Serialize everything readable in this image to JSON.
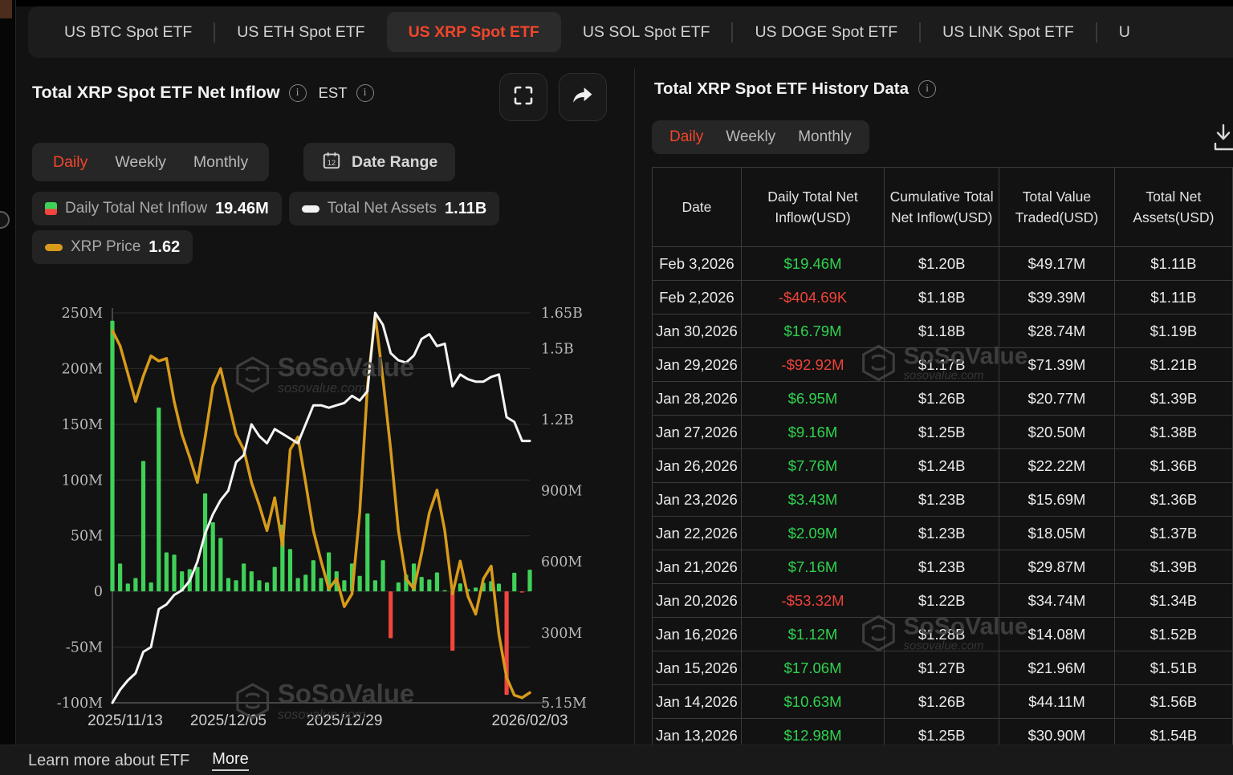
{
  "tabs": {
    "items": [
      {
        "label": "US BTC Spot ETF",
        "active": false
      },
      {
        "label": "US ETH Spot ETF",
        "active": false
      },
      {
        "label": "US XRP Spot ETF",
        "active": true
      },
      {
        "label": "US SOL Spot ETF",
        "active": false
      },
      {
        "label": "US DOGE Spot ETF",
        "active": false
      },
      {
        "label": "US LINK Spot ETF",
        "active": false
      },
      {
        "label": "U",
        "active": false
      }
    ]
  },
  "left_panel": {
    "title": "Total XRP Spot ETF Net Inflow",
    "est_label": "EST",
    "period_tabs": [
      "Daily",
      "Weekly",
      "Monthly"
    ],
    "active_period": "Daily",
    "date_range_label": "Date Range",
    "legend": [
      {
        "label": "Daily Total Net Inflow",
        "value": "19.46M"
      },
      {
        "label": "Total Net Assets",
        "value": "1.11B"
      },
      {
        "label": "XRP Price",
        "value": "1.62"
      }
    ]
  },
  "right_panel": {
    "title": "Total XRP Spot ETF History Data",
    "period_tabs": [
      "Daily",
      "Weekly",
      "Monthly"
    ],
    "active_period": "Daily",
    "table": {
      "columns": [
        "Date",
        "Daily Total Net Inflow(USD)",
        "Cumulative Total Net Inflow(USD)",
        "Total Value Traded(USD)",
        "Total Net Assets(USD)"
      ],
      "rows": [
        [
          "Feb 3,2026",
          "$19.46M",
          "$1.20B",
          "$49.17M",
          "$1.11B"
        ],
        [
          "Feb 2,2026",
          "-$404.69K",
          "$1.18B",
          "$39.39M",
          "$1.11B"
        ],
        [
          "Jan 30,2026",
          "$16.79M",
          "$1.18B",
          "$28.74M",
          "$1.19B"
        ],
        [
          "Jan 29,2026",
          "-$92.92M",
          "$1.17B",
          "$71.39M",
          "$1.21B"
        ],
        [
          "Jan 28,2026",
          "$6.95M",
          "$1.26B",
          "$20.77M",
          "$1.39B"
        ],
        [
          "Jan 27,2026",
          "$9.16M",
          "$1.25B",
          "$20.50M",
          "$1.38B"
        ],
        [
          "Jan 26,2026",
          "$7.76M",
          "$1.24B",
          "$22.22M",
          "$1.36B"
        ],
        [
          "Jan 23,2026",
          "$3.43M",
          "$1.23B",
          "$15.69M",
          "$1.36B"
        ],
        [
          "Jan 22,2026",
          "$2.09M",
          "$1.23B",
          "$18.05M",
          "$1.37B"
        ],
        [
          "Jan 21,2026",
          "$7.16M",
          "$1.23B",
          "$29.87M",
          "$1.39B"
        ],
        [
          "Jan 20,2026",
          "-$53.32M",
          "$1.22B",
          "$34.74M",
          "$1.34B"
        ],
        [
          "Jan 16,2026",
          "$1.12M",
          "$1.28B",
          "$14.08M",
          "$1.52B"
        ],
        [
          "Jan 15,2026",
          "$17.06M",
          "$1.27B",
          "$21.96M",
          "$1.51B"
        ],
        [
          "Jan 14,2026",
          "$10.63M",
          "$1.26B",
          "$44.11M",
          "$1.56B"
        ],
        [
          "Jan 13,2026",
          "$12.98M",
          "$1.25B",
          "$30.90M",
          "$1.54B"
        ]
      ]
    }
  },
  "footer": {
    "text": "Learn more about ETF",
    "link": "More"
  },
  "watermark": {
    "brand": "SoSoValue",
    "domain": "sosovalue.com"
  },
  "colors": {
    "accent_red": "#f1462b",
    "green": "#3fd158",
    "red_bar": "#f2453d",
    "orange_line": "#d79a1b",
    "white_line": "#f5f5f5"
  },
  "chart_data": {
    "type": "line+bar",
    "x": [
      "2025/11/13",
      "2025/11/14",
      "2025/11/17",
      "2025/11/18",
      "2025/11/19",
      "2025/11/20",
      "2025/11/21",
      "2025/11/24",
      "2025/11/25",
      "2025/11/26",
      "2025/11/28",
      "2025/12/01",
      "2025/12/02",
      "2025/12/03",
      "2025/12/04",
      "2025/12/05",
      "2025/12/08",
      "2025/12/09",
      "2025/12/10",
      "2025/12/11",
      "2025/12/12",
      "2025/12/15",
      "2025/12/16",
      "2025/12/17",
      "2025/12/18",
      "2025/12/19",
      "2025/12/22",
      "2025/12/23",
      "2025/12/24",
      "2025/12/26",
      "2025/12/29",
      "2025/12/30",
      "2025/12/31",
      "2026/01/02",
      "2026/01/05",
      "2026/01/06",
      "2026/01/07",
      "2026/01/08",
      "2026/01/09",
      "2026/01/12",
      "2026/01/13",
      "2026/01/14",
      "2026/01/15",
      "2026/01/16",
      "2026/01/20",
      "2026/01/21",
      "2026/01/22",
      "2026/01/23",
      "2026/01/26",
      "2026/01/27",
      "2026/01/28",
      "2026/01/29",
      "2026/01/30",
      "2026/02/02",
      "2026/02/03"
    ],
    "series": [
      {
        "name": "Daily Total Net Inflow",
        "type": "bar",
        "unit": "USD millions",
        "color_pos": "#3fd158",
        "color_neg": "#f2453d",
        "values": [
          243,
          25,
          7,
          12,
          117,
          8,
          165,
          35,
          33,
          18,
          20,
          22,
          88,
          62,
          48,
          12,
          10,
          25,
          18,
          10,
          8,
          22,
          60,
          38,
          12,
          15,
          28,
          12,
          35,
          18,
          10,
          25,
          14,
          70,
          10,
          28,
          -42,
          8,
          15,
          25,
          12.98,
          10.63,
          17.06,
          1.12,
          -53.32,
          7.16,
          2.09,
          3.43,
          7.76,
          9.16,
          6.95,
          -92.92,
          16.79,
          -0.4,
          19.46
        ]
      },
      {
        "name": "Total Net Assets",
        "type": "line",
        "unit": "USD billions",
        "color": "#f5f5f5",
        "values": [
          0.005,
          0.06,
          0.1,
          0.13,
          0.22,
          0.24,
          0.4,
          0.42,
          0.46,
          0.48,
          0.52,
          0.6,
          0.72,
          0.8,
          0.86,
          0.9,
          1.02,
          1.05,
          1.18,
          1.13,
          1.1,
          1.16,
          1.14,
          1.12,
          1.1,
          1.18,
          1.26,
          1.26,
          1.25,
          1.26,
          1.27,
          1.3,
          1.28,
          1.32,
          1.65,
          1.6,
          1.48,
          1.45,
          1.44,
          1.47,
          1.54,
          1.56,
          1.51,
          1.52,
          1.34,
          1.39,
          1.37,
          1.36,
          1.36,
          1.38,
          1.39,
          1.21,
          1.19,
          1.11,
          1.11
        ]
      },
      {
        "name": "XRP Price",
        "type": "line",
        "unit": "USD",
        "color": "#d79a1b",
        "values": [
          3.05,
          2.99,
          2.88,
          2.77,
          2.87,
          2.95,
          2.93,
          2.94,
          2.77,
          2.64,
          2.55,
          2.45,
          2.63,
          2.83,
          2.9,
          2.77,
          2.64,
          2.58,
          2.45,
          2.36,
          2.26,
          2.39,
          2.2,
          2.58,
          2.63,
          2.45,
          2.26,
          2.14,
          2.03,
          2.07,
          1.96,
          2.01,
          2.33,
          2.83,
          3.11,
          2.86,
          2.58,
          2.26,
          2.07,
          2.03,
          2.17,
          2.33,
          2.42,
          2.26,
          2.01,
          2.14,
          2.0,
          1.93,
          2.07,
          2.12,
          1.85,
          1.68,
          1.61,
          1.6,
          1.62
        ]
      }
    ],
    "left_axis": {
      "title": "",
      "range_millions": [
        -100,
        250
      ],
      "ticks": [
        {
          "v": 250,
          "label": "250M"
        },
        {
          "v": 200,
          "label": "200M"
        },
        {
          "v": 150,
          "label": "150M"
        },
        {
          "v": 100,
          "label": "100M"
        },
        {
          "v": 50,
          "label": "50M"
        },
        {
          "v": 0,
          "label": "0"
        },
        {
          "v": -50,
          "label": "-50M"
        },
        {
          "v": -100,
          "label": "-100M"
        }
      ]
    },
    "right_axis": {
      "title": "",
      "range_billions": [
        0.00515,
        1.65
      ],
      "ticks": [
        {
          "v": 1.65,
          "label": "1.65B"
        },
        {
          "v": 1.5,
          "label": "1.5B"
        },
        {
          "v": 1.2,
          "label": "1.2B"
        },
        {
          "v": 0.9,
          "label": "900M"
        },
        {
          "v": 0.6,
          "label": "600M"
        },
        {
          "v": 0.3,
          "label": "300M"
        },
        {
          "v": 0.00515,
          "label": "5.15M"
        }
      ]
    },
    "price_axis_range": [
      1.58,
      3.12
    ],
    "x_ticks": [
      {
        "i": 0,
        "label": "2025/11/13"
      },
      {
        "i": 15,
        "label": "2025/12/05"
      },
      {
        "i": 30,
        "label": "2025/12/29"
      },
      {
        "i": 54,
        "label": "2026/02/03"
      }
    ],
    "grid": true,
    "legend_position": "top-left"
  }
}
